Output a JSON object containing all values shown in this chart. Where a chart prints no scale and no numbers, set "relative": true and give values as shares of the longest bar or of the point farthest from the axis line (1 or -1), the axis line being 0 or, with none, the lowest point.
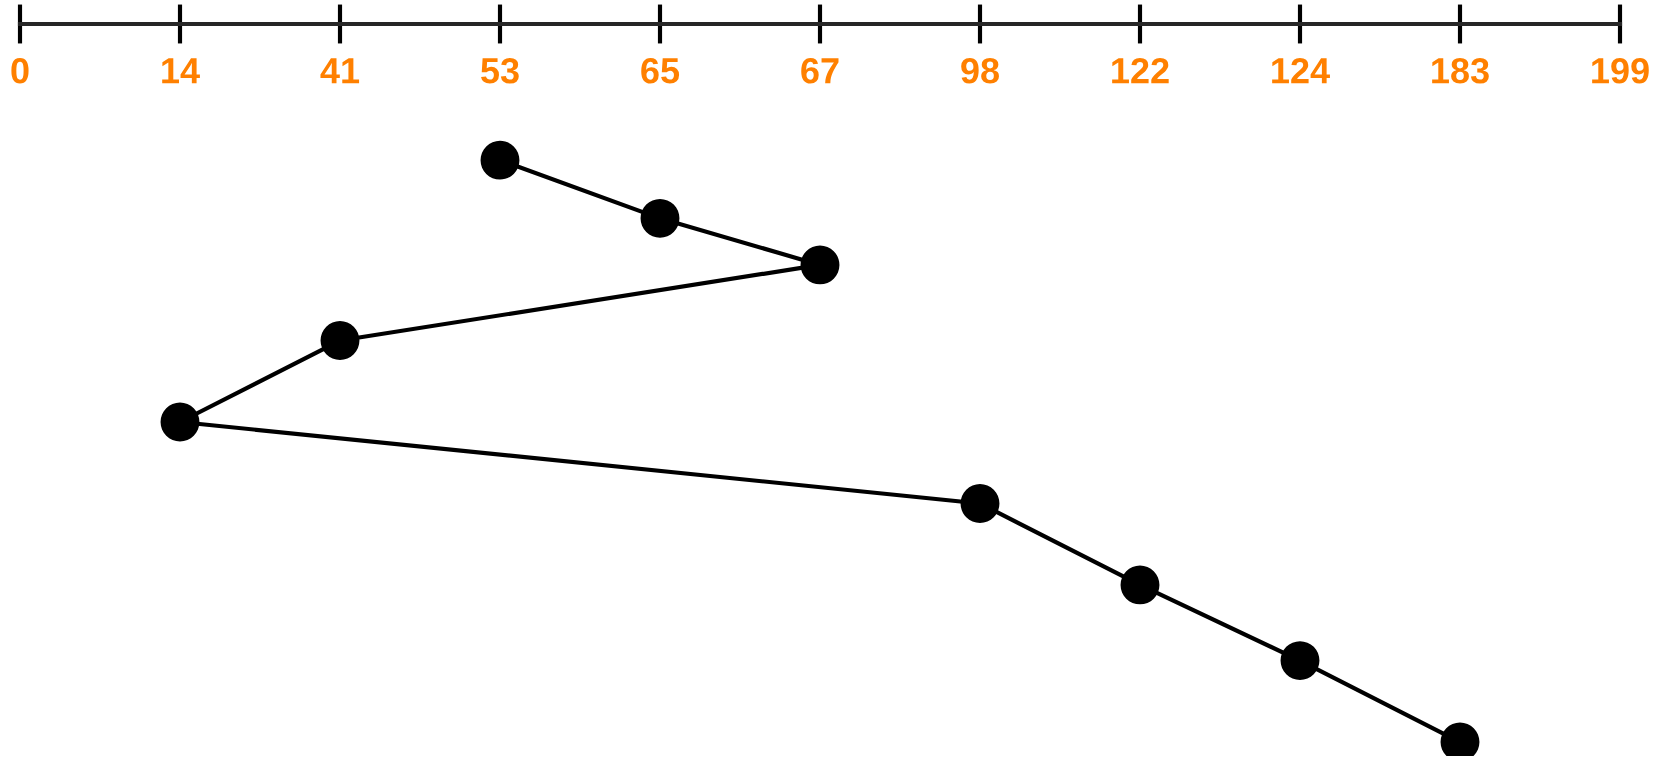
{
  "chart_data": {
    "type": "line",
    "relative": true,
    "tick_labels": "x",
    "grid": false,
    "marker": "circle",
    "line_style": "solid",
    "categories": [
      "0",
      "14",
      "41",
      "53",
      "65",
      "67",
      "98",
      "122",
      "124",
      "183",
      "199"
    ],
    "series": [
      {
        "color": "#000000",
        "x": [
          "53",
          "65",
          "67",
          "41",
          "14",
          "98",
          "122",
          "124",
          "183"
        ],
        "values": [
          1,
          0.9,
          0.82,
          0.69,
          0.55,
          0.41,
          0.27,
          0.14,
          0
        ]
      }
    ]
  }
}
